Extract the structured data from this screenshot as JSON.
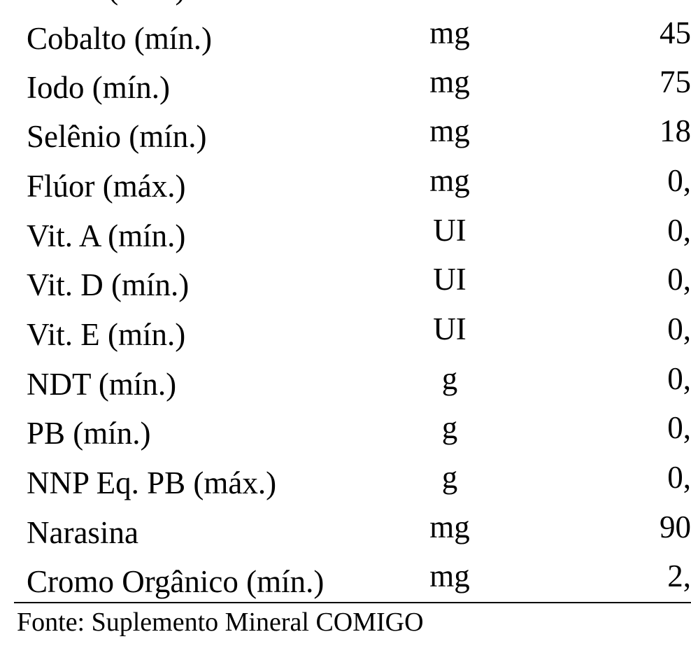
{
  "table": {
    "clipped_top_row": {
      "name": "Zinco (mín.)",
      "unit": "mg"
    },
    "rows": [
      {
        "name": "Cobalto (mín.)",
        "unit": "mg",
        "value": "45"
      },
      {
        "name": "Iodo (mín.)",
        "unit": "mg",
        "value": "75"
      },
      {
        "name": "Selênio (mín.)",
        "unit": "mg",
        "value": "18"
      },
      {
        "name": "Flúor (máx.)",
        "unit": "mg",
        "value": "0,"
      },
      {
        "name": "Vit. A (mín.)",
        "unit": "UI",
        "value": "0,"
      },
      {
        "name": "Vit. D (mín.)",
        "unit": "UI",
        "value": "0,"
      },
      {
        "name": "Vit. E (mín.)",
        "unit": "UI",
        "value": "0,"
      },
      {
        "name": "NDT (mín.)",
        "unit": "g",
        "value": "0,"
      },
      {
        "name": "PB (mín.)",
        "unit": "g",
        "value": "0,"
      },
      {
        "name": "NNP Eq. PB (máx.)",
        "unit": "g",
        "value": "0,"
      },
      {
        "name": "Narasina",
        "unit": "mg",
        "value": "90"
      },
      {
        "name": "Cromo Orgânico (mín.)",
        "unit": "mg",
        "value": "2,"
      }
    ]
  },
  "source": "Fonte: Suplemento Mineral COMIGO"
}
